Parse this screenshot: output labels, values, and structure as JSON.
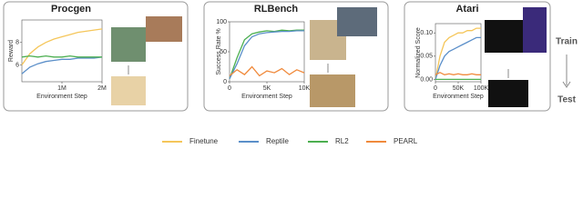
{
  "chart_data": [
    {
      "type": "line",
      "title": "Procgen",
      "xlabel": "Environment Step",
      "ylabel": "Reward",
      "x": [
        0,
        200000,
        400000,
        600000,
        800000,
        1000000,
        1200000,
        1400000,
        1600000,
        1800000,
        2000000
      ],
      "series": [
        {
          "name": "Finetune",
          "color": "#f5c65a",
          "values": [
            6.0,
            7.0,
            7.6,
            8.0,
            8.3,
            8.5,
            8.7,
            8.9,
            9.0,
            9.1,
            9.2
          ]
        },
        {
          "name": "Reptile",
          "color": "#5b8fc9",
          "values": [
            5.2,
            5.8,
            6.1,
            6.3,
            6.4,
            6.5,
            6.5,
            6.6,
            6.6,
            6.6,
            6.7
          ]
        },
        {
          "name": "RL2",
          "color": "#4caf50",
          "values": [
            6.7,
            6.8,
            6.7,
            6.8,
            6.7,
            6.7,
            6.8,
            6.7,
            6.7,
            6.7,
            6.7
          ]
        }
      ],
      "xlim": [
        0,
        2000000
      ],
      "xticks": [
        {
          "value": 1000000,
          "label": "1M"
        },
        {
          "value": 2000000,
          "label": "2M"
        }
      ],
      "ylim": [
        4.5,
        10
      ],
      "yticks": [
        6,
        8
      ]
    },
    {
      "type": "line",
      "title": "RLBench",
      "xlabel": "Environment Step",
      "ylabel": "Success Rate %",
      "x": [
        0,
        1000,
        2000,
        3000,
        4000,
        5000,
        6000,
        7000,
        8000,
        9000,
        10000
      ],
      "series": [
        {
          "name": "RL2",
          "color": "#4caf50",
          "values": [
            5,
            40,
            70,
            80,
            83,
            85,
            84,
            86,
            85,
            86,
            86
          ]
        },
        {
          "name": "Reptile",
          "color": "#5b8fc9",
          "values": [
            5,
            30,
            60,
            75,
            80,
            82,
            83,
            84,
            84,
            85,
            85
          ]
        },
        {
          "name": "PEARL",
          "color": "#f08a3c",
          "values": [
            10,
            20,
            12,
            25,
            10,
            18,
            15,
            22,
            12,
            20,
            15
          ]
        }
      ],
      "xlim": [
        0,
        10000
      ],
      "xticks": [
        0,
        {
          "value": 5000,
          "label": "5K"
        },
        {
          "value": 10000,
          "label": "10K"
        }
      ],
      "ylim": [
        0,
        100
      ],
      "yticks": [
        0,
        50,
        100
      ]
    },
    {
      "type": "line",
      "title": "Atari",
      "xlabel": "Environment Step",
      "ylabel": "Normalized Score",
      "x": [
        0,
        10000,
        20000,
        30000,
        40000,
        50000,
        60000,
        70000,
        80000,
        90000,
        100000
      ],
      "series": [
        {
          "name": "Finetune",
          "color": "#f5c65a",
          "values": [
            0.0,
            0.05,
            0.08,
            0.09,
            0.095,
            0.1,
            0.1,
            0.105,
            0.105,
            0.11,
            0.11
          ]
        },
        {
          "name": "Reptile",
          "color": "#5b8fc9",
          "values": [
            0.0,
            0.03,
            0.05,
            0.06,
            0.065,
            0.07,
            0.075,
            0.08,
            0.085,
            0.09,
            0.09
          ]
        },
        {
          "name": "RL2",
          "color": "#4caf50",
          "values": [
            0,
            0,
            0,
            0,
            0,
            0,
            0,
            0,
            0,
            0,
            0
          ]
        },
        {
          "name": "PEARL",
          "color": "#f08a3c",
          "values": [
            0.01,
            0.015,
            0.01,
            0.012,
            0.01,
            0.012,
            0.01,
            0.01,
            0.012,
            0.01,
            0.01
          ]
        }
      ],
      "xlim": [
        0,
        100000
      ],
      "xticks": [
        0,
        {
          "value": 50000,
          "label": "50K"
        },
        {
          "value": 100000,
          "label": "100K"
        }
      ],
      "ylim": [
        -0.005,
        0.12
      ],
      "yticks": [
        {
          "value": 0,
          "label": "0.00"
        },
        0.05,
        {
          "value": 0.1,
          "label": "0.10"
        }
      ]
    }
  ],
  "side_labels": {
    "train": "Train",
    "test": "Test"
  }
}
